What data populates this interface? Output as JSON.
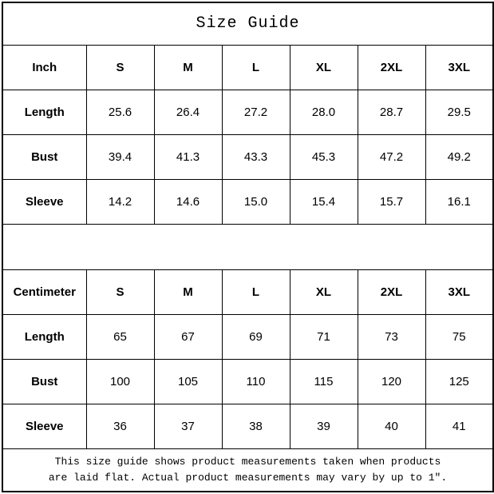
{
  "title": "Size Guide",
  "tables": [
    {
      "unit": "Inch",
      "sizes": [
        "S",
        "M",
        "L",
        "XL",
        "2XL",
        "3XL"
      ],
      "rows": [
        {
          "label": "Length",
          "values": [
            "25.6",
            "26.4",
            "27.2",
            "28.0",
            "28.7",
            "29.5"
          ]
        },
        {
          "label": "Bust",
          "values": [
            "39.4",
            "41.3",
            "43.3",
            "45.3",
            "47.2",
            "49.2"
          ]
        },
        {
          "label": "Sleeve",
          "values": [
            "14.2",
            "14.6",
            "15.0",
            "15.4",
            "15.7",
            "16.1"
          ]
        }
      ]
    },
    {
      "unit": "Centimeter",
      "sizes": [
        "S",
        "M",
        "L",
        "XL",
        "2XL",
        "3XL"
      ],
      "rows": [
        {
          "label": "Length",
          "values": [
            "65",
            "67",
            "69",
            "71",
            "73",
            "75"
          ]
        },
        {
          "label": "Bust",
          "values": [
            "100",
            "105",
            "110",
            "115",
            "120",
            "125"
          ]
        },
        {
          "label": "Sleeve",
          "values": [
            "36",
            "37",
            "38",
            "39",
            "40",
            "41"
          ]
        }
      ]
    }
  ],
  "footnote": {
    "line1": "This size guide shows product measurements taken when products",
    "line2": "are laid flat. Actual product measurements may vary by up to 1″."
  },
  "colors": {
    "text": "#000000",
    "border": "#000000",
    "background": "#ffffff"
  },
  "chart_data": [
    {
      "type": "table",
      "title": "Size Guide (Inch)",
      "columns": [
        "Inch",
        "S",
        "M",
        "L",
        "XL",
        "2XL",
        "3XL"
      ],
      "rows": [
        [
          "Length",
          25.6,
          26.4,
          27.2,
          28.0,
          28.7,
          29.5
        ],
        [
          "Bust",
          39.4,
          41.3,
          43.3,
          45.3,
          47.2,
          49.2
        ],
        [
          "Sleeve",
          14.2,
          14.6,
          15.0,
          15.4,
          15.7,
          16.1
        ]
      ]
    },
    {
      "type": "table",
      "title": "Size Guide (Centimeter)",
      "columns": [
        "Centimeter",
        "S",
        "M",
        "L",
        "XL",
        "2XL",
        "3XL"
      ],
      "rows": [
        [
          "Length",
          65,
          67,
          69,
          71,
          73,
          75
        ],
        [
          "Bust",
          100,
          105,
          110,
          115,
          120,
          125
        ],
        [
          "Sleeve",
          36,
          37,
          38,
          39,
          40,
          41
        ]
      ]
    }
  ]
}
